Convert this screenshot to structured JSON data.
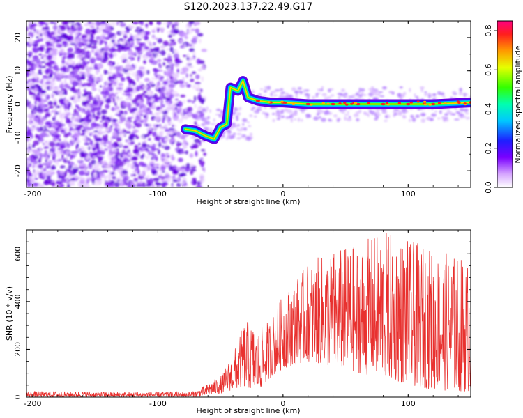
{
  "title": "S120.2023.137.22.49.G17",
  "colors": {
    "snr_line": "#e8312f",
    "spectrogram_noise": "#6a00e0",
    "axis": "#000000"
  },
  "chart_data": [
    {
      "type": "heatmap",
      "xlabel": "Height of straight line (km)",
      "ylabel": "Frequency (Hz)",
      "xlim": [
        -205,
        150
      ],
      "ylim": [
        -25,
        25
      ],
      "xticks": [
        -200,
        -100,
        0,
        100
      ],
      "xtick_labels": [
        "-200",
        "-100",
        "0",
        "100"
      ],
      "yticks": [
        -20,
        -10,
        0,
        10,
        20
      ],
      "ytick_labels": [
        "-20",
        "-10",
        "0",
        "10",
        "20"
      ],
      "colorbar": {
        "label": "Normalized spectral amplitude",
        "range": [
          0,
          0.85
        ],
        "ticks": [
          0,
          0.2,
          0.4,
          0.6,
          0.8
        ],
        "tick_labels": [
          "0.0",
          "0.2",
          "0.4",
          "0.6",
          "0.8"
        ],
        "colormap": "rainbow (white-purple-blue-cyan-green-yellow-red-magenta)"
      },
      "ridge": [
        {
          "x": -78,
          "y": -7.5
        },
        {
          "x": -70,
          "y": -8
        },
        {
          "x": -62,
          "y": -9.5
        },
        {
          "x": -55,
          "y": -10.5
        },
        {
          "x": -50,
          "y": -7
        },
        {
          "x": -45,
          "y": -6
        },
        {
          "x": -42,
          "y": 5
        },
        {
          "x": -36,
          "y": 4
        },
        {
          "x": -32,
          "y": 7
        },
        {
          "x": -28,
          "y": 2
        },
        {
          "x": -20,
          "y": 1
        },
        {
          "x": -10,
          "y": 0.5
        },
        {
          "x": 0,
          "y": 0.5
        },
        {
          "x": 20,
          "y": 0
        },
        {
          "x": 40,
          "y": 0
        },
        {
          "x": 60,
          "y": 0
        },
        {
          "x": 80,
          "y": 0
        },
        {
          "x": 100,
          "y": 0
        },
        {
          "x": 120,
          "y": 0
        },
        {
          "x": 150,
          "y": 0.5
        }
      ],
      "noise_region_x": [
        -205,
        -70
      ]
    },
    {
      "type": "line",
      "xlabel": "Height of straight line (km)",
      "ylabel": "SNR (10 * v/v)",
      "xlim": [
        -205,
        150
      ],
      "ylim": [
        0,
        700
      ],
      "xticks": [
        -200,
        -100,
        0,
        100
      ],
      "xtick_labels": [
        "-200",
        "-100",
        "0",
        "100"
      ],
      "yticks": [
        0,
        200,
        400,
        600
      ],
      "ytick_labels": [
        "0",
        "200",
        "400",
        "600"
      ],
      "envelope": [
        {
          "x": -205,
          "lo": 0,
          "hi": 25
        },
        {
          "x": -120,
          "lo": 0,
          "hi": 22
        },
        {
          "x": -70,
          "lo": 0,
          "hi": 25
        },
        {
          "x": -50,
          "lo": 15,
          "hi": 90
        },
        {
          "x": -40,
          "lo": 30,
          "hi": 180
        },
        {
          "x": -30,
          "lo": 40,
          "hi": 330
        },
        {
          "x": -20,
          "lo": 20,
          "hi": 280
        },
        {
          "x": -10,
          "lo": 80,
          "hi": 330
        },
        {
          "x": 0,
          "lo": 120,
          "hi": 430
        },
        {
          "x": 20,
          "lo": 150,
          "hi": 560
        },
        {
          "x": 40,
          "lo": 120,
          "hi": 620
        },
        {
          "x": 60,
          "lo": 100,
          "hi": 640
        },
        {
          "x": 80,
          "lo": 80,
          "hi": 700
        },
        {
          "x": 100,
          "lo": 50,
          "hi": 660
        },
        {
          "x": 120,
          "lo": 30,
          "hi": 620
        },
        {
          "x": 150,
          "lo": 20,
          "hi": 580
        }
      ]
    }
  ]
}
